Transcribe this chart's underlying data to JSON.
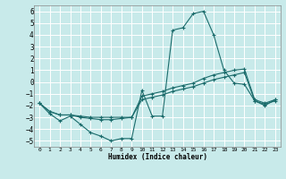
{
  "xlabel": "Humidex (Indice chaleur)",
  "bg_color": "#c8eaea",
  "grid_color": "#b0d8d8",
  "line_color": "#1a6b6b",
  "xlim": [
    -0.5,
    23.5
  ],
  "ylim": [
    -5.5,
    6.5
  ],
  "xticks": [
    0,
    1,
    2,
    3,
    4,
    5,
    6,
    7,
    8,
    9,
    10,
    11,
    12,
    13,
    14,
    15,
    16,
    17,
    18,
    19,
    20,
    21,
    22,
    23
  ],
  "yticks": [
    -5,
    -4,
    -3,
    -2,
    -1,
    0,
    1,
    2,
    3,
    4,
    5,
    6
  ],
  "series": [
    {
      "x": [
        0,
        1,
        2,
        3,
        4,
        5,
        6,
        7,
        8,
        9,
        10,
        11,
        12,
        13,
        14,
        15,
        16,
        17,
        18,
        19,
        20,
        21,
        22,
        23
      ],
      "y": [
        -1.8,
        -2.7,
        -3.3,
        -2.9,
        -3.6,
        -4.3,
        -4.6,
        -5.0,
        -4.8,
        -4.8,
        -0.7,
        -2.9,
        -2.9,
        4.4,
        4.6,
        5.8,
        6.0,
        4.0,
        1.0,
        -0.1,
        -0.2,
        -1.6,
        -2.0,
        -1.5
      ]
    },
    {
      "x": [
        0,
        1,
        2,
        3,
        4,
        5,
        6,
        7,
        8,
        9,
        10,
        11,
        12,
        13,
        14,
        15,
        16,
        17,
        18,
        19,
        20,
        21,
        22,
        23
      ],
      "y": [
        -1.8,
        -2.5,
        -2.8,
        -2.8,
        -2.9,
        -3.0,
        -3.0,
        -3.0,
        -3.0,
        -3.0,
        -1.2,
        -1.0,
        -0.8,
        -0.5,
        -0.3,
        -0.1,
        0.3,
        0.6,
        0.8,
        1.0,
        1.1,
        -1.5,
        -1.8,
        -1.5
      ]
    },
    {
      "x": [
        0,
        1,
        2,
        3,
        4,
        5,
        6,
        7,
        8,
        9,
        10,
        11,
        12,
        13,
        14,
        15,
        16,
        17,
        18,
        19,
        20,
        21,
        22,
        23
      ],
      "y": [
        -1.8,
        -2.5,
        -2.8,
        -2.8,
        -3.0,
        -3.1,
        -3.2,
        -3.2,
        -3.1,
        -3.0,
        -1.5,
        -1.3,
        -1.1,
        -0.8,
        -0.6,
        -0.4,
        -0.1,
        0.2,
        0.4,
        0.6,
        0.8,
        -1.6,
        -1.9,
        -1.6
      ]
    }
  ]
}
